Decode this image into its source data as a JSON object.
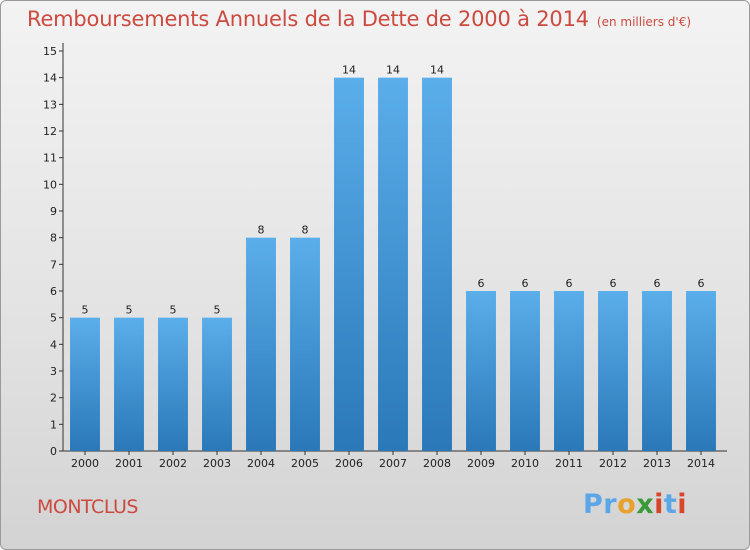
{
  "header": {
    "title": "Remboursements Annuels de la Dette de 2000 à 2014",
    "unit": "(en milliers d'€)"
  },
  "footer": {
    "commune": "MONTCLUS",
    "logo_text": "Proxiti",
    "logo_colors": [
      "#5aa6e8",
      "#e8a12b",
      "#3a9a3a",
      "#d9452b"
    ]
  },
  "chart_data": {
    "type": "bar",
    "title": "Remboursements Annuels de la Dette de 2000 à 2014",
    "subtitle": "(en milliers d'€)",
    "xlabel": "",
    "ylabel": "",
    "categories": [
      "2000",
      "2001",
      "2002",
      "2003",
      "2004",
      "2005",
      "2006",
      "2007",
      "2008",
      "2009",
      "2010",
      "2011",
      "2012",
      "2013",
      "2014"
    ],
    "values": [
      5,
      5,
      5,
      5,
      8,
      8,
      14,
      14,
      14,
      6,
      6,
      6,
      6,
      6,
      6
    ],
    "data_labels": [
      "5",
      "5",
      "5",
      "5",
      "8",
      "8",
      "14",
      "14",
      "14",
      "6",
      "6",
      "6",
      "6",
      "6",
      "6"
    ],
    "ylim": [
      0,
      15
    ],
    "yticks": [
      0,
      1,
      2,
      3,
      4,
      5,
      6,
      7,
      8,
      9,
      10,
      11,
      12,
      13,
      14,
      15
    ],
    "grid": false,
    "legend": "none",
    "bar_color_top": "#5aaeea",
    "bar_color_bottom": "#2a78b8",
    "axis_color": "#333333",
    "text_color": "#222222"
  }
}
